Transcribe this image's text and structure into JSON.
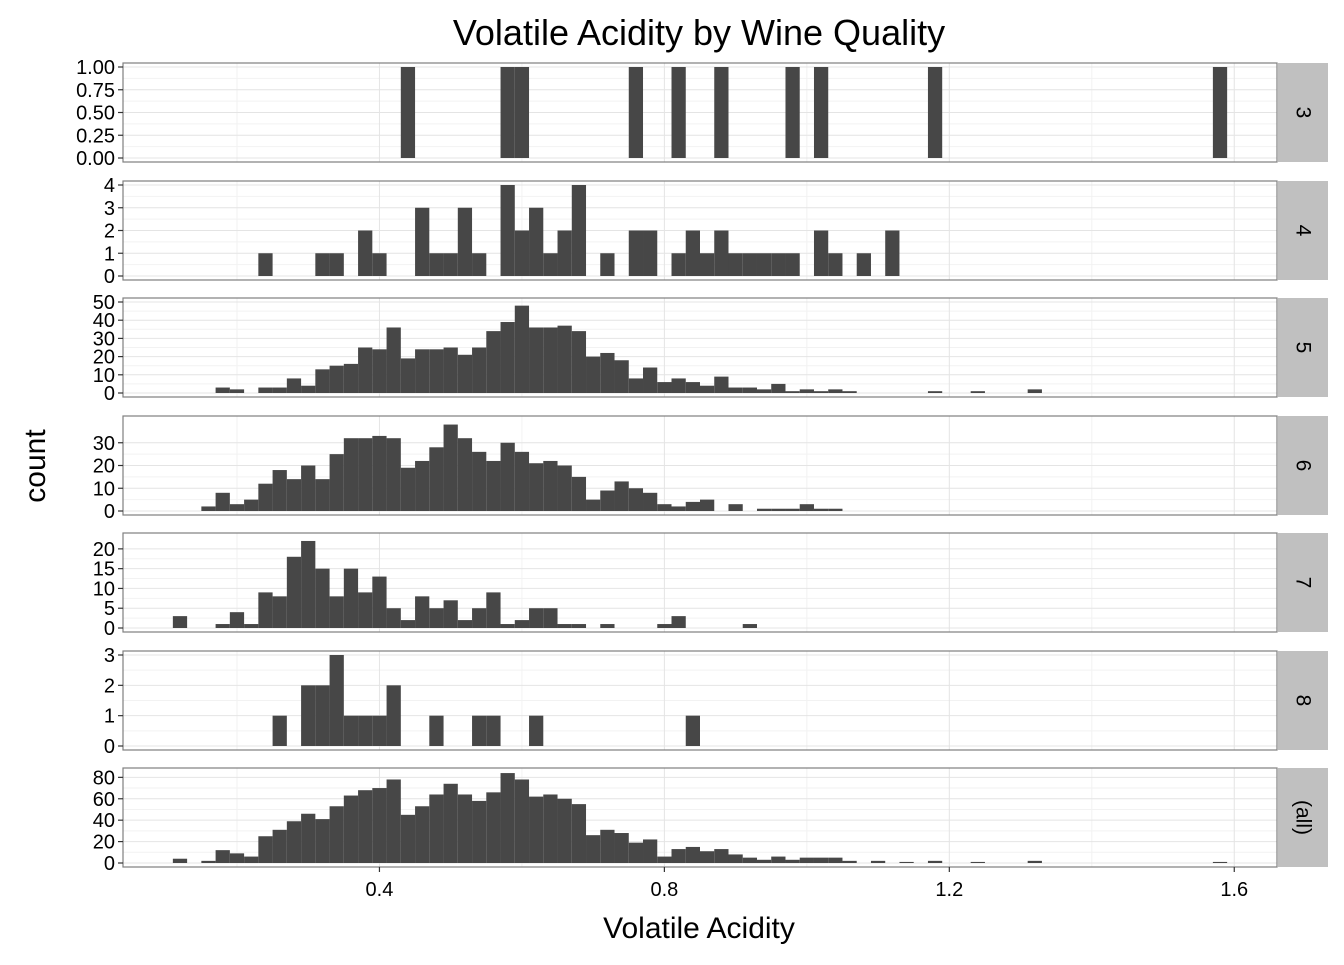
{
  "chart_data": {
    "type": "bar",
    "title": "Volatile Acidity by Wine Quality",
    "xlabel": "Volatile Acidity",
    "ylabel": "count",
    "xlim": [
      0.04,
      1.66
    ],
    "x_ticks": [
      "0.4",
      "0.8",
      "1.2",
      "1.6"
    ],
    "bin_width": 0.02,
    "grid": true,
    "bar_color": "#474747",
    "strip_color": "#c0c0c0",
    "panels": [
      {
        "label": "3",
        "ylim": [
          0,
          1
        ],
        "y_ticks": [
          "0.00",
          "0.25",
          "0.50",
          "0.75",
          "1.00"
        ],
        "bins": [
          [
            0.44,
            1
          ],
          [
            0.58,
            1
          ],
          [
            0.6,
            1
          ],
          [
            0.76,
            1
          ],
          [
            0.82,
            1
          ],
          [
            0.88,
            1
          ],
          [
            0.98,
            1
          ],
          [
            1.02,
            1
          ],
          [
            1.18,
            1
          ],
          [
            1.58,
            1
          ]
        ]
      },
      {
        "label": "4",
        "ylim": [
          0,
          4
        ],
        "y_ticks": [
          "0",
          "1",
          "2",
          "3",
          "4"
        ],
        "bins": [
          [
            0.24,
            1
          ],
          [
            0.32,
            1
          ],
          [
            0.34,
            1
          ],
          [
            0.38,
            2
          ],
          [
            0.4,
            1
          ],
          [
            0.46,
            3
          ],
          [
            0.48,
            1
          ],
          [
            0.5,
            1
          ],
          [
            0.52,
            3
          ],
          [
            0.54,
            1
          ],
          [
            0.58,
            4
          ],
          [
            0.6,
            2
          ],
          [
            0.62,
            3
          ],
          [
            0.64,
            1
          ],
          [
            0.66,
            2
          ],
          [
            0.68,
            4
          ],
          [
            0.72,
            1
          ],
          [
            0.76,
            2
          ],
          [
            0.78,
            2
          ],
          [
            0.82,
            1
          ],
          [
            0.84,
            2
          ],
          [
            0.86,
            1
          ],
          [
            0.88,
            2
          ],
          [
            0.9,
            1
          ],
          [
            0.92,
            1
          ],
          [
            0.94,
            1
          ],
          [
            0.96,
            1
          ],
          [
            0.98,
            1
          ],
          [
            1.02,
            2
          ],
          [
            1.04,
            1
          ],
          [
            1.08,
            1
          ],
          [
            1.12,
            2
          ]
        ]
      },
      {
        "label": "5",
        "ylim": [
          0,
          50
        ],
        "y_ticks": [
          "0",
          "10",
          "20",
          "30",
          "40",
          "50"
        ],
        "bins": [
          [
            0.18,
            3
          ],
          [
            0.2,
            2
          ],
          [
            0.24,
            3
          ],
          [
            0.26,
            3
          ],
          [
            0.28,
            8
          ],
          [
            0.3,
            4
          ],
          [
            0.32,
            13
          ],
          [
            0.34,
            15
          ],
          [
            0.36,
            16
          ],
          [
            0.38,
            25
          ],
          [
            0.4,
            24
          ],
          [
            0.42,
            36
          ],
          [
            0.44,
            19
          ],
          [
            0.46,
            24
          ],
          [
            0.48,
            24
          ],
          [
            0.5,
            25
          ],
          [
            0.52,
            21
          ],
          [
            0.54,
            25
          ],
          [
            0.56,
            34
          ],
          [
            0.58,
            39
          ],
          [
            0.6,
            48
          ],
          [
            0.62,
            36
          ],
          [
            0.64,
            36
          ],
          [
            0.66,
            37
          ],
          [
            0.68,
            34
          ],
          [
            0.7,
            20
          ],
          [
            0.72,
            22
          ],
          [
            0.74,
            18
          ],
          [
            0.76,
            8
          ],
          [
            0.78,
            14
          ],
          [
            0.8,
            6
          ],
          [
            0.82,
            8
          ],
          [
            0.84,
            6
          ],
          [
            0.86,
            4
          ],
          [
            0.88,
            9
          ],
          [
            0.9,
            3
          ],
          [
            0.92,
            3
          ],
          [
            0.94,
            2
          ],
          [
            0.96,
            5
          ],
          [
            0.98,
            1
          ],
          [
            1.0,
            2
          ],
          [
            1.02,
            1
          ],
          [
            1.04,
            2
          ],
          [
            1.06,
            1
          ],
          [
            1.18,
            1
          ],
          [
            1.24,
            1
          ],
          [
            1.32,
            2
          ]
        ]
      },
      {
        "label": "6",
        "ylim": [
          0,
          40
        ],
        "y_ticks": [
          "0",
          "10",
          "20",
          "30"
        ],
        "bins": [
          [
            0.16,
            2
          ],
          [
            0.18,
            8
          ],
          [
            0.2,
            3
          ],
          [
            0.22,
            5
          ],
          [
            0.24,
            12
          ],
          [
            0.26,
            18
          ],
          [
            0.28,
            14
          ],
          [
            0.3,
            20
          ],
          [
            0.32,
            14
          ],
          [
            0.34,
            25
          ],
          [
            0.36,
            32
          ],
          [
            0.38,
            32
          ],
          [
            0.4,
            33
          ],
          [
            0.42,
            32
          ],
          [
            0.44,
            19
          ],
          [
            0.46,
            22
          ],
          [
            0.48,
            28
          ],
          [
            0.5,
            38
          ],
          [
            0.52,
            32
          ],
          [
            0.54,
            26
          ],
          [
            0.56,
            22
          ],
          [
            0.58,
            30
          ],
          [
            0.6,
            26
          ],
          [
            0.62,
            21
          ],
          [
            0.64,
            22
          ],
          [
            0.66,
            20
          ],
          [
            0.68,
            15
          ],
          [
            0.7,
            5
          ],
          [
            0.72,
            9
          ],
          [
            0.74,
            13
          ],
          [
            0.76,
            10
          ],
          [
            0.78,
            8
          ],
          [
            0.8,
            3
          ],
          [
            0.82,
            2
          ],
          [
            0.84,
            4
          ],
          [
            0.86,
            5
          ],
          [
            0.9,
            3
          ],
          [
            0.94,
            1
          ],
          [
            0.96,
            1
          ],
          [
            0.98,
            1
          ],
          [
            1.0,
            3
          ],
          [
            1.02,
            1
          ],
          [
            1.04,
            1
          ]
        ]
      },
      {
        "label": "7",
        "ylim": [
          0,
          23
        ],
        "y_ticks": [
          "0",
          "5",
          "10",
          "15",
          "20"
        ],
        "bins": [
          [
            0.12,
            3
          ],
          [
            0.18,
            1
          ],
          [
            0.2,
            4
          ],
          [
            0.22,
            1
          ],
          [
            0.24,
            9
          ],
          [
            0.26,
            8
          ],
          [
            0.28,
            18
          ],
          [
            0.3,
            22
          ],
          [
            0.32,
            15
          ],
          [
            0.34,
            8
          ],
          [
            0.36,
            15
          ],
          [
            0.38,
            9
          ],
          [
            0.4,
            13
          ],
          [
            0.42,
            5
          ],
          [
            0.44,
            2
          ],
          [
            0.46,
            8
          ],
          [
            0.48,
            5
          ],
          [
            0.5,
            7
          ],
          [
            0.52,
            2
          ],
          [
            0.54,
            5
          ],
          [
            0.56,
            9
          ],
          [
            0.58,
            1
          ],
          [
            0.6,
            2
          ],
          [
            0.62,
            5
          ],
          [
            0.64,
            5
          ],
          [
            0.66,
            1
          ],
          [
            0.68,
            1
          ],
          [
            0.72,
            1
          ],
          [
            0.8,
            1
          ],
          [
            0.82,
            3
          ],
          [
            0.92,
            1
          ]
        ]
      },
      {
        "label": "8",
        "ylim": [
          0,
          3
        ],
        "y_ticks": [
          "0",
          "1",
          "2",
          "3"
        ],
        "bins": [
          [
            0.26,
            1
          ],
          [
            0.3,
            2
          ],
          [
            0.32,
            2
          ],
          [
            0.34,
            3
          ],
          [
            0.36,
            1
          ],
          [
            0.38,
            1
          ],
          [
            0.4,
            1
          ],
          [
            0.42,
            2
          ],
          [
            0.48,
            1
          ],
          [
            0.54,
            1
          ],
          [
            0.56,
            1
          ],
          [
            0.62,
            1
          ],
          [
            0.84,
            1
          ]
        ]
      },
      {
        "label": "(all)",
        "ylim": [
          0,
          85
        ],
        "y_ticks": [
          "0",
          "20",
          "40",
          "60",
          "80"
        ],
        "bins": [
          [
            0.12,
            4
          ],
          [
            0.16,
            2
          ],
          [
            0.18,
            12
          ],
          [
            0.2,
            9
          ],
          [
            0.22,
            6
          ],
          [
            0.24,
            25
          ],
          [
            0.26,
            31
          ],
          [
            0.28,
            39
          ],
          [
            0.3,
            46
          ],
          [
            0.32,
            41
          ],
          [
            0.34,
            53
          ],
          [
            0.36,
            63
          ],
          [
            0.38,
            68
          ],
          [
            0.4,
            70
          ],
          [
            0.42,
            78
          ],
          [
            0.44,
            45
          ],
          [
            0.46,
            53
          ],
          [
            0.48,
            64
          ],
          [
            0.5,
            74
          ],
          [
            0.52,
            64
          ],
          [
            0.54,
            58
          ],
          [
            0.56,
            66
          ],
          [
            0.58,
            84
          ],
          [
            0.6,
            78
          ],
          [
            0.62,
            62
          ],
          [
            0.64,
            64
          ],
          [
            0.66,
            60
          ],
          [
            0.68,
            55
          ],
          [
            0.7,
            26
          ],
          [
            0.72,
            31
          ],
          [
            0.74,
            28
          ],
          [
            0.76,
            19
          ],
          [
            0.78,
            22
          ],
          [
            0.8,
            6
          ],
          [
            0.82,
            13
          ],
          [
            0.84,
            15
          ],
          [
            0.86,
            11
          ],
          [
            0.88,
            13
          ],
          [
            0.9,
            8
          ],
          [
            0.92,
            5
          ],
          [
            0.94,
            3
          ],
          [
            0.96,
            6
          ],
          [
            0.98,
            3
          ],
          [
            1.0,
            5
          ],
          [
            1.02,
            5
          ],
          [
            1.04,
            5
          ],
          [
            1.06,
            2
          ],
          [
            1.1,
            2
          ],
          [
            1.14,
            1
          ],
          [
            1.18,
            2
          ],
          [
            1.24,
            1
          ],
          [
            1.32,
            2
          ],
          [
            1.58,
            1
          ]
        ]
      }
    ]
  }
}
